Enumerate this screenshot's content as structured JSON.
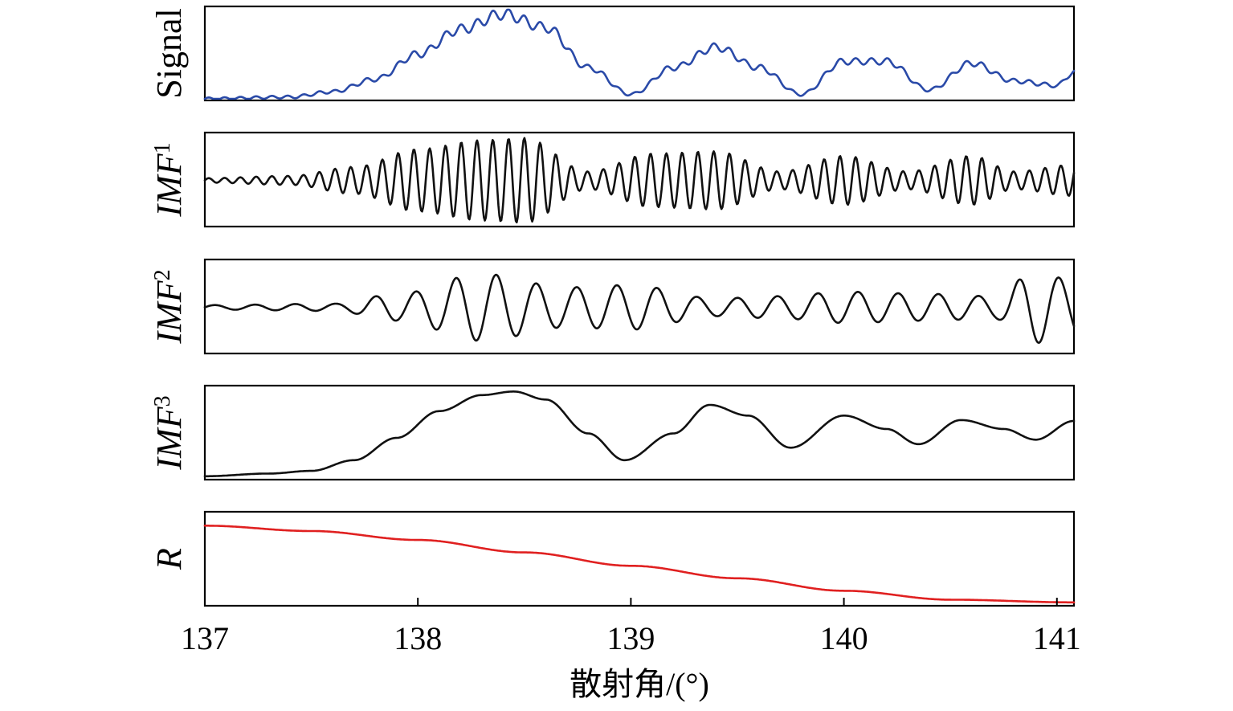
{
  "chart_data": {
    "type": "line",
    "xlabel": "散射角/(°)",
    "xlim": [
      137,
      141.08
    ],
    "xticks": [
      137,
      138,
      139,
      140,
      141
    ],
    "panels": [
      {
        "id": "signal",
        "ylabel": "Signal",
        "ylabel_main": "Signal",
        "ylabel_sub": "",
        "color": "#2a4aa8",
        "kind": "signal",
        "envelope": [
          [
            137.0,
            0.0
          ],
          [
            137.4,
            0.02
          ],
          [
            137.6,
            0.08
          ],
          [
            137.8,
            0.22
          ],
          [
            138.0,
            0.5
          ],
          [
            138.2,
            0.78
          ],
          [
            138.4,
            0.95
          ],
          [
            138.6,
            0.8
          ],
          [
            138.8,
            0.35
          ],
          [
            139.0,
            0.05
          ],
          [
            139.2,
            0.35
          ],
          [
            139.4,
            0.58
          ],
          [
            139.6,
            0.35
          ],
          [
            139.8,
            0.05
          ],
          [
            140.0,
            0.42
          ],
          [
            140.2,
            0.42
          ],
          [
            140.4,
            0.1
          ],
          [
            140.6,
            0.4
          ],
          [
            140.8,
            0.2
          ],
          [
            141.0,
            0.15
          ],
          [
            141.08,
            0.3
          ]
        ]
      },
      {
        "id": "imf1",
        "ylabel": "IMF1",
        "ylabel_main": "IMF",
        "ylabel_sub": "1",
        "color": "#111111",
        "kind": "oscillation",
        "freq": 13.5,
        "amplitude": [
          [
            137.0,
            0.05
          ],
          [
            137.4,
            0.1
          ],
          [
            137.7,
            0.3
          ],
          [
            138.0,
            0.7
          ],
          [
            138.3,
            0.9
          ],
          [
            138.5,
            0.95
          ],
          [
            138.8,
            0.2
          ],
          [
            139.1,
            0.6
          ],
          [
            139.4,
            0.65
          ],
          [
            139.7,
            0.2
          ],
          [
            140.0,
            0.55
          ],
          [
            140.3,
            0.2
          ],
          [
            140.6,
            0.55
          ],
          [
            140.8,
            0.2
          ],
          [
            141.08,
            0.35
          ]
        ]
      },
      {
        "id": "imf2",
        "ylabel": "IMF2",
        "ylabel_main": "IMF",
        "ylabel_sub": "2",
        "color": "#111111",
        "kind": "oscillation",
        "freq": 5.3,
        "amplitude": [
          [
            137.0,
            0.05
          ],
          [
            137.6,
            0.08
          ],
          [
            137.9,
            0.3
          ],
          [
            138.3,
            0.75
          ],
          [
            138.7,
            0.45
          ],
          [
            139.0,
            0.5
          ],
          [
            139.4,
            0.2
          ],
          [
            139.7,
            0.25
          ],
          [
            140.0,
            0.35
          ],
          [
            140.4,
            0.3
          ],
          [
            140.7,
            0.25
          ],
          [
            140.9,
            0.8
          ],
          [
            141.08,
            0.6
          ]
        ]
      },
      {
        "id": "imf3",
        "ylabel": "IMF3",
        "ylabel_main": "IMF",
        "ylabel_sub": "3",
        "color": "#111111",
        "kind": "smooth",
        "points": [
          [
            137.0,
            0.02
          ],
          [
            137.3,
            0.05
          ],
          [
            137.5,
            0.08
          ],
          [
            137.7,
            0.2
          ],
          [
            137.9,
            0.45
          ],
          [
            138.1,
            0.75
          ],
          [
            138.3,
            0.93
          ],
          [
            138.45,
            0.97
          ],
          [
            138.6,
            0.88
          ],
          [
            138.8,
            0.5
          ],
          [
            138.97,
            0.2
          ],
          [
            139.2,
            0.5
          ],
          [
            139.37,
            0.82
          ],
          [
            139.55,
            0.7
          ],
          [
            139.75,
            0.34
          ],
          [
            140.0,
            0.7
          ],
          [
            140.2,
            0.55
          ],
          [
            140.35,
            0.38
          ],
          [
            140.55,
            0.65
          ],
          [
            140.75,
            0.55
          ],
          [
            140.9,
            0.43
          ],
          [
            141.08,
            0.64
          ]
        ]
      },
      {
        "id": "residual",
        "ylabel": "R",
        "ylabel_main": "R",
        "ylabel_sub": "",
        "color": "#e02020",
        "kind": "smooth",
        "points": [
          [
            137.0,
            0.88
          ],
          [
            137.5,
            0.82
          ],
          [
            138.0,
            0.72
          ],
          [
            138.5,
            0.58
          ],
          [
            139.0,
            0.43
          ],
          [
            139.5,
            0.29
          ],
          [
            140.0,
            0.15
          ],
          [
            140.5,
            0.05
          ],
          [
            141.08,
            0.02
          ]
        ]
      }
    ]
  }
}
